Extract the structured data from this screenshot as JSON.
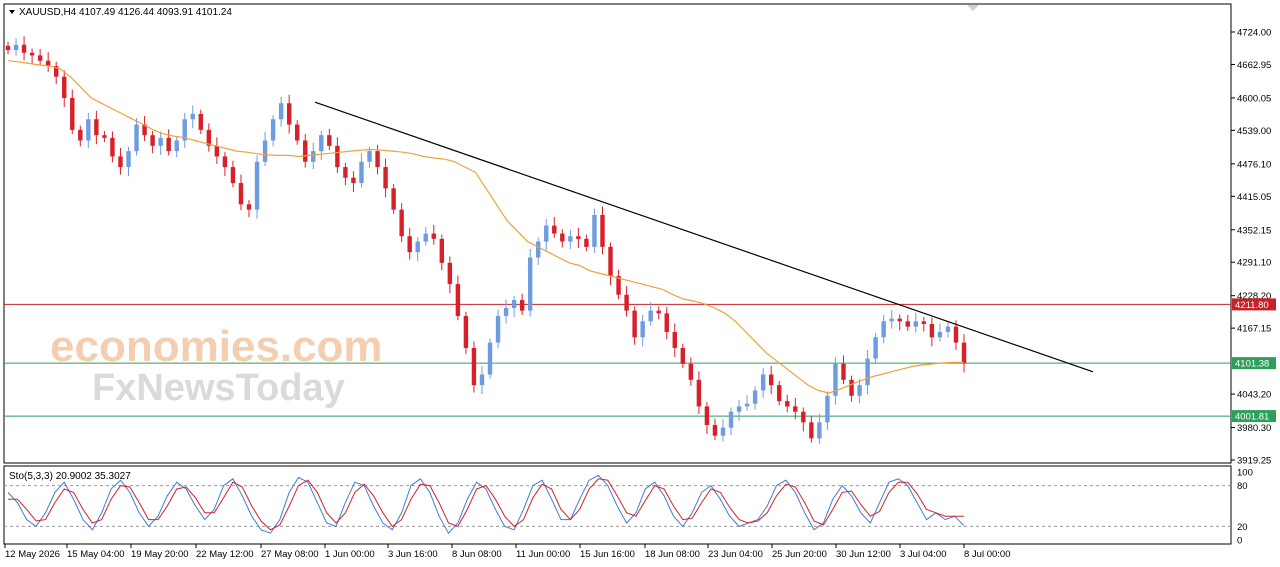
{
  "header": {
    "symbol_line": "XAUUSD,H4  4107.49 4126.44 4093.91 4101.24",
    "collapse_icon": "triangle-down-icon",
    "scroll_marker_icon": "triangle-down-icon"
  },
  "indicator": {
    "label": "Sto(5,3,3) 20.9002 35.3027",
    "levels": [
      100,
      80,
      20,
      0
    ],
    "level_labels": [
      "100",
      "80",
      "20",
      "0"
    ]
  },
  "watermark": {
    "line1": "economies.com",
    "line2": "FxNewsToday"
  },
  "price_levels": [
    {
      "label": "4211.80",
      "value": 4211.8,
      "color": "#c8202a"
    },
    {
      "label": "4101.38",
      "value": 4101.38,
      "color": "#2e9e5b"
    },
    {
      "label": "4001.81",
      "value": 4001.81,
      "color": "#2e9e5b"
    }
  ],
  "colors": {
    "bull": "#6d9de0",
    "bear": "#d8202a",
    "ma": "#f0a23a",
    "trendline": "#000000",
    "stoch_main": "#3a7fd5",
    "stoch_signal": "#d8202a",
    "grid": "#9a9a9a"
  },
  "chart_data": {
    "type": "candlestick",
    "title": "XAUUSD,H4",
    "ylim": [
      3919.25,
      4724.0
    ],
    "y_ticks": [
      "4724.00",
      "4662.95",
      "4600.05",
      "4539.00",
      "4476.10",
      "4415.05",
      "4352.15",
      "4291.10",
      "4228.20",
      "4167.15",
      "4043.20",
      "3980.30",
      "3919.25"
    ],
    "y_tick_values": [
      4724.0,
      4662.95,
      4600.05,
      4539.0,
      4476.1,
      4415.05,
      4352.15,
      4291.1,
      4228.2,
      4167.15,
      4043.2,
      3980.3,
      3919.25
    ],
    "x_labels": [
      "12 May 2026",
      "15 May 04:00",
      "19 May 20:00",
      "22 May 12:00",
      "27 May 08:00",
      "1 Jun 00:00",
      "3 Jun 16:00",
      "8 Jun 08:00",
      "11 Jun 00:00",
      "15 Jun 16:00",
      "18 Jun 08:00",
      "23 Jun 04:00",
      "25 Jun 20:00",
      "30 Jun 12:00",
      "3 Jul 04:00",
      "8 Jul 00:00"
    ],
    "last_ohlc": {
      "open": 4107.49,
      "high": 4126.44,
      "low": 4093.91,
      "close": 4101.24
    },
    "close_path": [
      4690,
      4700,
      4685,
      4680,
      4670,
      4660,
      4640,
      4600,
      4540,
      4520,
      4560,
      4530,
      4525,
      4490,
      4470,
      4500,
      4550,
      4530,
      4510,
      4525,
      4500,
      4520,
      4560,
      4570,
      4540,
      4510,
      4490,
      4470,
      4440,
      4400,
      4390,
      4480,
      4520,
      4560,
      4590,
      4550,
      4520,
      4480,
      4500,
      4530,
      4510,
      4470,
      4450,
      4440,
      4480,
      4500,
      4470,
      4430,
      4390,
      4340,
      4310,
      4330,
      4345,
      4335,
      4290,
      4250,
      4190,
      4130,
      4060,
      4080,
      4140,
      4190,
      4205,
      4220,
      4200,
      4300,
      4330,
      4360,
      4345,
      4330,
      4340,
      4335,
      4320,
      4380,
      4320,
      4265,
      4230,
      4200,
      4150,
      4180,
      4200,
      4195,
      4160,
      4130,
      4100,
      4070,
      4020,
      3985,
      3965,
      3980,
      4010,
      4020,
      4025,
      4050,
      4080,
      4060,
      4030,
      4020,
      4010,
      3990,
      3960,
      3990,
      4040,
      4100,
      4070,
      4040,
      4060,
      4110,
      4150,
      4180,
      4185,
      4180,
      4170,
      4180,
      4175,
      4150,
      4160,
      4170,
      4140,
      4101
    ],
    "moving_average": [
      4670,
      4668,
      4665,
      4662,
      4660,
      4655,
      4640,
      4620,
      4600,
      4590,
      4580,
      4570,
      4560,
      4550,
      4540,
      4532,
      4528,
      4525,
      4520,
      4515,
      4510,
      4505,
      4500,
      4498,
      4495,
      4493,
      4492,
      4492,
      4490,
      4492,
      4494,
      4496,
      4498,
      4500,
      4502,
      4503,
      4502,
      4500,
      4498,
      4495,
      4490,
      4487,
      4485,
      4480,
      4470,
      4460,
      4430,
      4400,
      4370,
      4350,
      4330,
      4320,
      4310,
      4300,
      4290,
      4285,
      4275,
      4270,
      4265,
      4260,
      4255,
      4250,
      4245,
      4240,
      4230,
      4222,
      4218,
      4213,
      4205,
      4195,
      4180,
      4160,
      4140,
      4120,
      4105,
      4090,
      4075,
      4060,
      4050,
      4045,
      4052,
      4060,
      4068,
      4075,
      4080,
      4085,
      4090,
      4095,
      4098,
      4100,
      4102,
      4103,
      4103
    ],
    "trendline": [
      {
        "x": "27 May 08:00",
        "y": 4592
      },
      {
        "x": "8 Jul 16:00",
        "y": 4085
      }
    ],
    "stochastic": {
      "name": "Sto(5,3,3)",
      "main_value": 20.9002,
      "signal_value": 35.3027,
      "main": [
        70,
        55,
        30,
        20,
        40,
        70,
        85,
        60,
        30,
        15,
        40,
        75,
        88,
        70,
        40,
        20,
        35,
        65,
        85,
        75,
        50,
        30,
        45,
        80,
        90,
        65,
        35,
        15,
        10,
        30,
        70,
        92,
        85,
        55,
        25,
        20,
        55,
        85,
        80,
        50,
        25,
        15,
        40,
        80,
        90,
        70,
        35,
        10,
        25,
        60,
        85,
        75,
        45,
        20,
        15,
        45,
        80,
        88,
        60,
        30,
        30,
        60,
        88,
        95,
        80,
        50,
        25,
        40,
        75,
        85,
        65,
        35,
        20,
        40,
        70,
        80,
        60,
        35,
        20,
        25,
        30,
        50,
        80,
        88,
        70,
        40,
        15,
        25,
        60,
        80,
        65,
        40,
        25,
        55,
        85,
        90,
        80,
        55,
        30,
        40,
        30,
        35,
        21
      ],
      "signal": [
        60,
        60,
        45,
        28,
        30,
        55,
        75,
        70,
        45,
        25,
        30,
        60,
        80,
        78,
        55,
        30,
        30,
        50,
        75,
        78,
        62,
        40,
        40,
        62,
        85,
        78,
        50,
        28,
        15,
        22,
        50,
        80,
        88,
        70,
        40,
        25,
        40,
        70,
        82,
        65,
        40,
        20,
        30,
        60,
        82,
        80,
        55,
        25,
        20,
        45,
        75,
        80,
        60,
        35,
        20,
        30,
        62,
        82,
        75,
        45,
        30,
        45,
        75,
        90,
        88,
        65,
        40,
        35,
        58,
        80,
        75,
        50,
        30,
        32,
        55,
        75,
        70,
        48,
        30,
        25,
        28,
        40,
        65,
        82,
        78,
        55,
        28,
        22,
        45,
        70,
        72,
        52,
        35,
        42,
        70,
        85,
        85,
        68,
        45,
        40,
        35,
        35,
        35
      ]
    }
  }
}
